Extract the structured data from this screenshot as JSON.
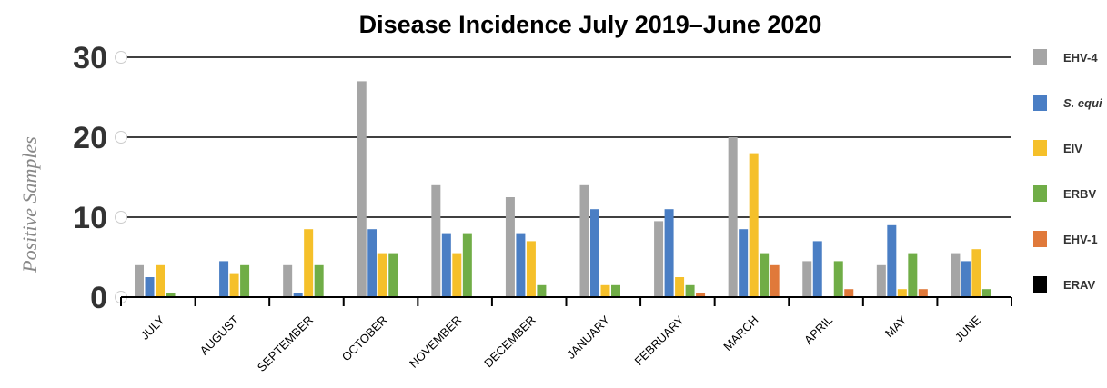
{
  "chart_data": {
    "type": "bar",
    "title": "Disease Incidence July 2019–June 2020",
    "xlabel": "",
    "ylabel": "Positive Samples",
    "ylim": [
      0,
      30
    ],
    "yticks": [
      0,
      10,
      20,
      30
    ],
    "grid": true,
    "legend_position": "right",
    "categories": [
      "JULY",
      "AUGUST",
      "SEPTEMBER",
      "OCTOBER",
      "NOVEMBER",
      "DECEMBER",
      "JANUARY",
      "FEBRUARY",
      "MARCH",
      "APRIL",
      "MAY",
      "JUNE"
    ],
    "series": [
      {
        "name": "EHV-4",
        "color": "#a5a5a5",
        "italic": false,
        "values": [
          4,
          0,
          4,
          27,
          14,
          12.5,
          14,
          9.5,
          20,
          4.5,
          4,
          5.5
        ]
      },
      {
        "name": "S. equi",
        "color": "#4a7ec4",
        "italic": true,
        "values": [
          2.5,
          4.5,
          0.5,
          8.5,
          8,
          8,
          11,
          11,
          8.5,
          7,
          9,
          4.5
        ]
      },
      {
        "name": "EIV",
        "color": "#f5c02a",
        "italic": false,
        "values": [
          4,
          3,
          8.5,
          5.5,
          5.5,
          7,
          1.5,
          2.5,
          18,
          0,
          1,
          6
        ]
      },
      {
        "name": "ERBV",
        "color": "#70ad47",
        "italic": false,
        "values": [
          0.5,
          4,
          4,
          5.5,
          8,
          1.5,
          1.5,
          1.5,
          5.5,
          4.5,
          5.5,
          1
        ]
      },
      {
        "name": "EHV-1",
        "color": "#e0793a",
        "italic": false,
        "values": [
          0,
          0,
          0,
          0,
          0,
          0,
          0,
          0.5,
          4,
          1,
          1,
          0
        ]
      },
      {
        "name": "ERAV",
        "color": "#000000",
        "italic": false,
        "values": [
          0,
          0,
          0,
          0,
          0,
          0,
          0,
          0,
          0,
          0,
          0,
          0
        ]
      }
    ]
  }
}
